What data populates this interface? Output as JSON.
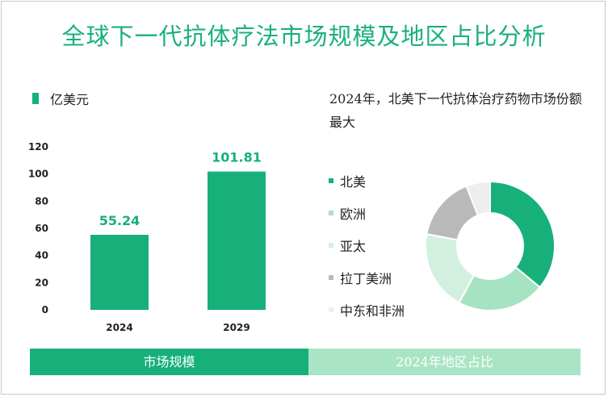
{
  "title": "全球下一代抗体疗法市场规模及地区占比分析",
  "bar_legend_label": "亿美元",
  "note": "2024年，北美下一代抗体治疗药物市场份额最大",
  "footer": {
    "left": "市场规模",
    "right": "2024年地区占比"
  },
  "colors": {
    "accent": "#17b07a",
    "light_accent": "#a9e4c5"
  },
  "chart_data": [
    {
      "type": "bar",
      "categories": [
        "2024",
        "2029"
      ],
      "values": [
        55.24,
        101.81
      ],
      "data_labels": [
        "55.24",
        "101.81"
      ],
      "yticks": [
        "0",
        "20",
        "40",
        "60",
        "80",
        "100",
        "120"
      ],
      "ylim": [
        0,
        120
      ],
      "color": "#17b07a",
      "legend": "亿美元"
    },
    {
      "type": "pie",
      "donut": true,
      "labels": [
        "北美",
        "欧洲",
        "亚太",
        "拉丁美洲",
        "中东和非洲"
      ],
      "values": [
        36,
        22,
        20,
        16,
        6
      ],
      "colors": [
        "#17b07a",
        "#a6e3c3",
        "#d2f0e0",
        "#b9b9b9",
        "#eeeeee"
      ]
    }
  ]
}
